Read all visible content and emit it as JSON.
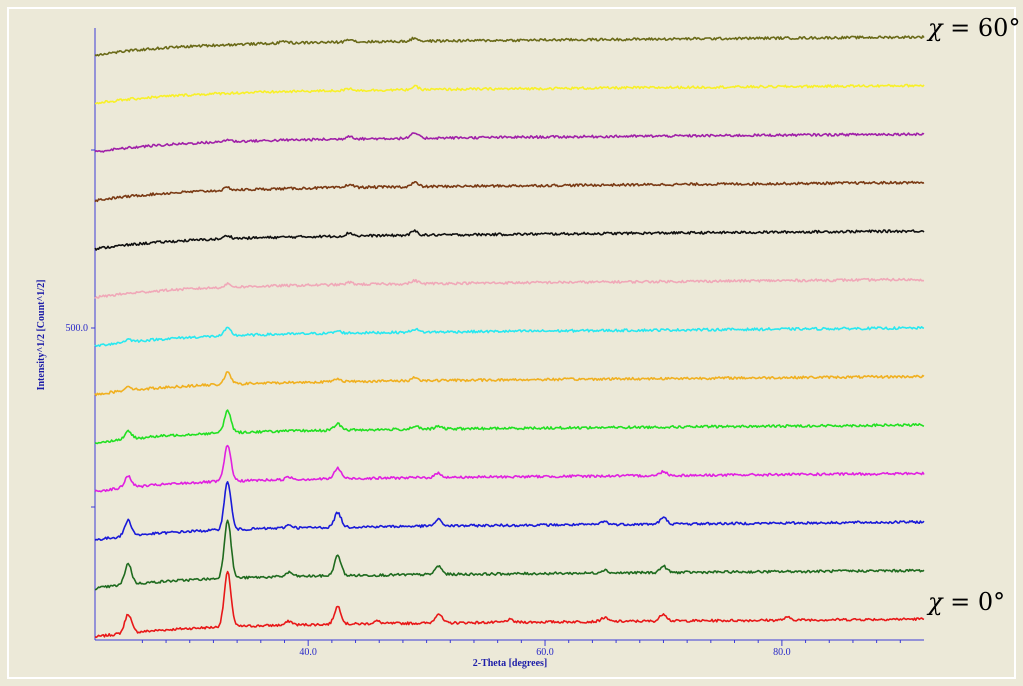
{
  "chart_data": {
    "type": "line",
    "xlabel": "2-Theta [degrees]",
    "ylabel": "Intensity^1/2 [Count^1/2]",
    "xlim": [
      22,
      92
    ],
    "x_ticks": [
      40.0,
      60.0,
      80.0
    ],
    "x_tick_labels": [
      "40.0",
      "60.0",
      "80.0"
    ],
    "y_tick_labels": [
      "500.0"
    ],
    "series": [
      {
        "color": "#e81818",
        "baseline": 0.0,
        "peaks": [
          [
            24.8,
            0.9
          ],
          [
            33.2,
            2.6
          ],
          [
            38.4,
            0.18
          ],
          [
            42.5,
            0.85
          ],
          [
            45.8,
            0.12
          ],
          [
            51.0,
            0.45
          ],
          [
            57.0,
            0.12
          ],
          [
            65.0,
            0.18
          ],
          [
            70.0,
            0.35
          ],
          [
            80.5,
            0.12
          ]
        ]
      },
      {
        "color": "#1f6b1f",
        "baseline": 1.0,
        "peaks": [
          [
            24.8,
            1.0
          ],
          [
            33.2,
            2.8
          ],
          [
            38.4,
            0.2
          ],
          [
            42.5,
            0.95
          ],
          [
            51.0,
            0.4
          ],
          [
            65.0,
            0.15
          ],
          [
            70.0,
            0.3
          ]
        ]
      },
      {
        "color": "#1a1ad8",
        "baseline": 2.0,
        "peaks": [
          [
            24.8,
            0.75
          ],
          [
            33.2,
            2.3
          ],
          [
            38.4,
            0.15
          ],
          [
            42.5,
            0.7
          ],
          [
            51.0,
            0.3
          ],
          [
            65.0,
            0.15
          ],
          [
            70.0,
            0.3
          ]
        ]
      },
      {
        "color": "#e020e0",
        "baseline": 3.0,
        "peaks": [
          [
            24.8,
            0.55
          ],
          [
            33.2,
            1.7
          ],
          [
            38.4,
            0.12
          ],
          [
            42.5,
            0.5
          ],
          [
            51.0,
            0.2
          ],
          [
            70.0,
            0.2
          ]
        ]
      },
      {
        "color": "#22e022",
        "baseline": 4.0,
        "peaks": [
          [
            24.8,
            0.35
          ],
          [
            33.2,
            1.05
          ],
          [
            42.5,
            0.3
          ],
          [
            49.0,
            0.15
          ],
          [
            51.0,
            0.12
          ]
        ]
      },
      {
        "color": "#f0b020",
        "baseline": 5.0,
        "peaks": [
          [
            24.8,
            0.2
          ],
          [
            33.2,
            0.55
          ],
          [
            42.5,
            0.15
          ],
          [
            49.0,
            0.15
          ]
        ]
      },
      {
        "color": "#28e8f0",
        "baseline": 6.0,
        "peaks": [
          [
            24.8,
            0.12
          ],
          [
            33.2,
            0.35
          ],
          [
            42.5,
            0.1
          ],
          [
            49.0,
            0.15
          ]
        ]
      },
      {
        "color": "#f0a8b8",
        "baseline": 7.0,
        "peaks": [
          [
            33.2,
            0.15
          ],
          [
            43.5,
            0.1
          ],
          [
            49.0,
            0.15
          ]
        ]
      },
      {
        "color": "#101010",
        "baseline": 8.0,
        "peaks": [
          [
            33.2,
            0.15
          ],
          [
            43.5,
            0.15
          ],
          [
            49.0,
            0.2
          ]
        ]
      },
      {
        "color": "#7a3a14",
        "baseline": 9.0,
        "peaks": [
          [
            33.2,
            0.12
          ],
          [
            43.5,
            0.15
          ],
          [
            49.0,
            0.2
          ]
        ]
      },
      {
        "color": "#a020a8",
        "baseline": 10.0,
        "peaks": [
          [
            33.2,
            0.1
          ],
          [
            43.5,
            0.15
          ],
          [
            49.0,
            0.25
          ]
        ]
      },
      {
        "color": "#f8f028",
        "baseline": 11.0,
        "peaks": [
          [
            43.5,
            0.1
          ],
          [
            49.0,
            0.15
          ]
        ]
      },
      {
        "color": "#6a6a18",
        "baseline": 12.0,
        "peaks": [
          [
            38.0,
            0.1
          ],
          [
            43.5,
            0.15
          ],
          [
            49.0,
            0.15
          ]
        ]
      }
    ]
  },
  "annotations": {
    "bottom_label_symbol": "χ",
    "bottom_label_value": " = 0°",
    "top_label_symbol": "χ",
    "top_label_value": " = 60°"
  }
}
